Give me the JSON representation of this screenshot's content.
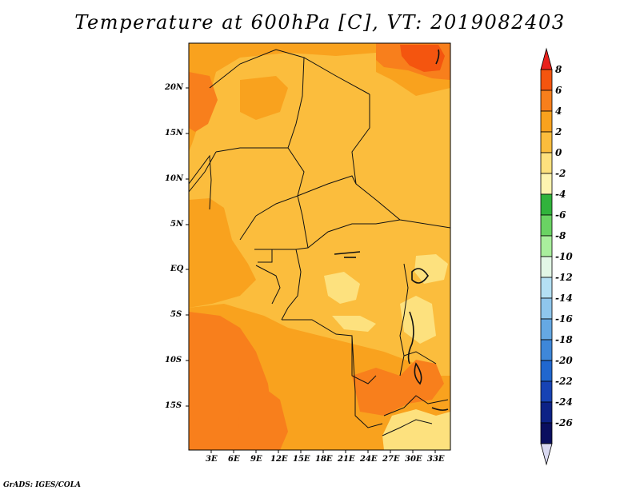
{
  "title": "Temperature at 600hPa [C], VT: 2019082403",
  "credit": "GrADS: IGES/COLA",
  "map": {
    "region": "Central and Southern Africa",
    "y_ticks": [
      "20N",
      "15N",
      "10N",
      "5N",
      "EQ",
      "5S",
      "10S",
      "15S"
    ],
    "x_ticks": [
      "3E",
      "6E",
      "9E",
      "12E",
      "15E",
      "18E",
      "21E",
      "24E",
      "27E",
      "30E",
      "33E"
    ],
    "lon_range": [
      0,
      35
    ],
    "lat_range": [
      -20,
      24.5
    ],
    "dominant_fill": "0 to 2 C over most of the region, 2 to 4 C in the west and south, 4 to 6 C patches in the north-east and south-west, -2 to 0 C patches around 5S-10S and the south-east"
  },
  "colorbar": {
    "labels": [
      "8",
      "6",
      "4",
      "2",
      "0",
      "-2",
      "-4",
      "-6",
      "-8",
      "-10",
      "-12",
      "-14",
      "-16",
      "-18",
      "-20",
      "-22",
      "-24",
      "-26"
    ],
    "colors": [
      "#e8221c",
      "#f4550f",
      "#f87f1c",
      "#f9a21e",
      "#fbbd3d",
      "#fde17e",
      "#fef4b0",
      "#31b33c",
      "#6ad363",
      "#a9ef9d",
      "#e2f7e6",
      "#b4e0f4",
      "#8fc6ec",
      "#65a8e3",
      "#3e87d9",
      "#2067cf",
      "#1743b4",
      "#0d2286",
      "#0a0f5f",
      "#d9d9f1"
    ]
  }
}
